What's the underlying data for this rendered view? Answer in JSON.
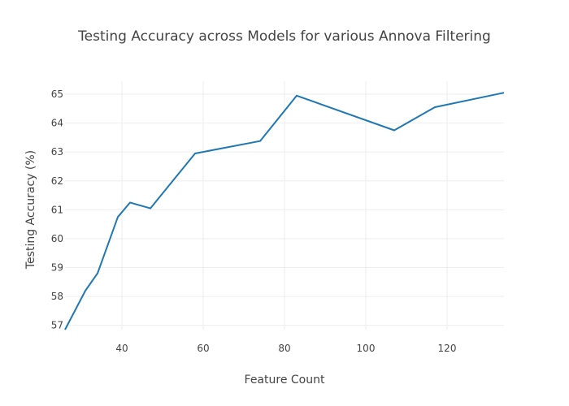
{
  "chart_data": {
    "type": "line",
    "title": "Testing Accuracy across Models for various Annova Filtering",
    "xlabel": "Feature Count",
    "ylabel": "Testing Accuracy (%)",
    "xlim": [
      26,
      134
    ],
    "ylim": [
      56.85,
      65.45
    ],
    "x_ticks": [
      40,
      60,
      80,
      100,
      120
    ],
    "y_ticks": [
      57,
      58,
      59,
      60,
      61,
      62,
      63,
      64,
      65
    ],
    "grid": true,
    "legend": "none",
    "series": [
      {
        "color": "#1f77b4",
        "x": [
          26,
          31,
          34,
          39,
          42,
          47,
          58,
          74,
          83,
          107,
          117,
          134
        ],
        "y": [
          56.85,
          58.2,
          58.8,
          60.75,
          61.25,
          61.05,
          62.95,
          63.38,
          64.95,
          63.75,
          64.55,
          65.05
        ]
      }
    ]
  }
}
